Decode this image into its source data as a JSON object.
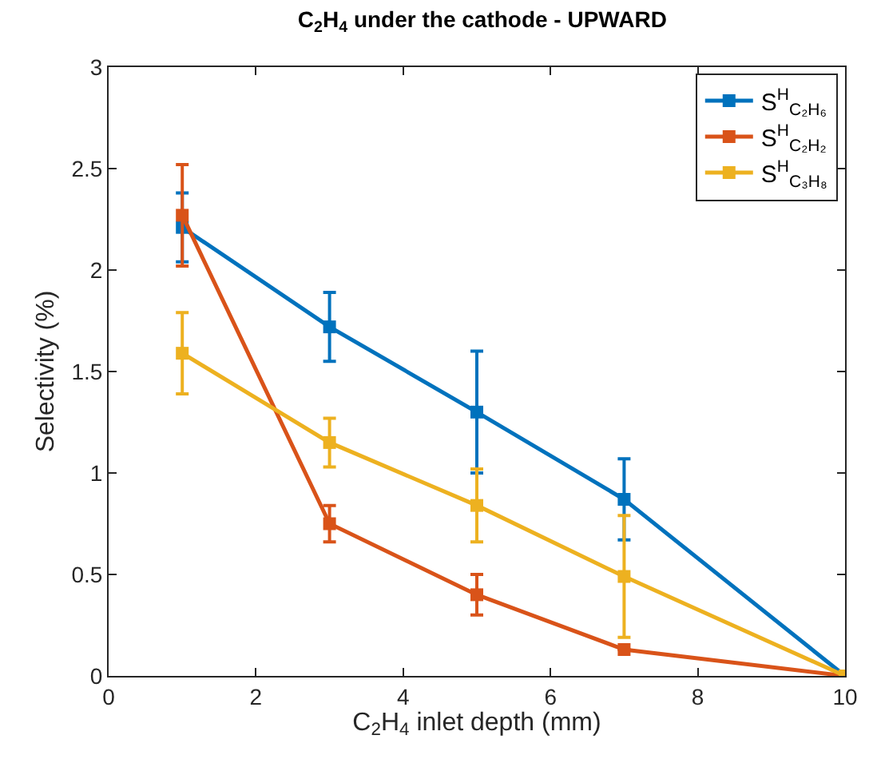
{
  "chart_data": {
    "type": "line",
    "title": "C$_{2}$H$_{4}$ under the cathode - UPWARD",
    "xlabel": "C$_{2}$H$_{4}$ inlet depth (mm)",
    "ylabel": "Selectivity (%)",
    "x": [
      1,
      3,
      5,
      7,
      10
    ],
    "series": [
      {
        "name": "S$^{H}$$_{C₂H₆}$",
        "color": "#0072bd",
        "values": [
          2.21,
          1.72,
          1.3,
          0.87,
          0
        ],
        "errors": [
          0.17,
          0.17,
          0.3,
          0.2,
          0
        ]
      },
      {
        "name": "S$^{H}$$_{C₂H₂}$",
        "color": "#d95319",
        "values": [
          2.27,
          0.75,
          0.4,
          0.13,
          0
        ],
        "errors": [
          0.25,
          0.09,
          0.1,
          0,
          0
        ]
      },
      {
        "name": "S$^{H}$$_{C₃H₈}$",
        "color": "#edb120",
        "values": [
          1.59,
          1.15,
          0.84,
          0.49,
          0
        ],
        "errors": [
          0.2,
          0.12,
          0.18,
          0.3,
          0
        ]
      }
    ],
    "xlim": [
      0,
      10
    ],
    "xticks": [
      0,
      2,
      4,
      6,
      8,
      10
    ],
    "ylim": [
      0,
      3
    ],
    "yticks": [
      0,
      0.5,
      1,
      1.5,
      2,
      2.5,
      3
    ],
    "legend": "top right",
    "marker": "square",
    "line_style": "solid"
  }
}
